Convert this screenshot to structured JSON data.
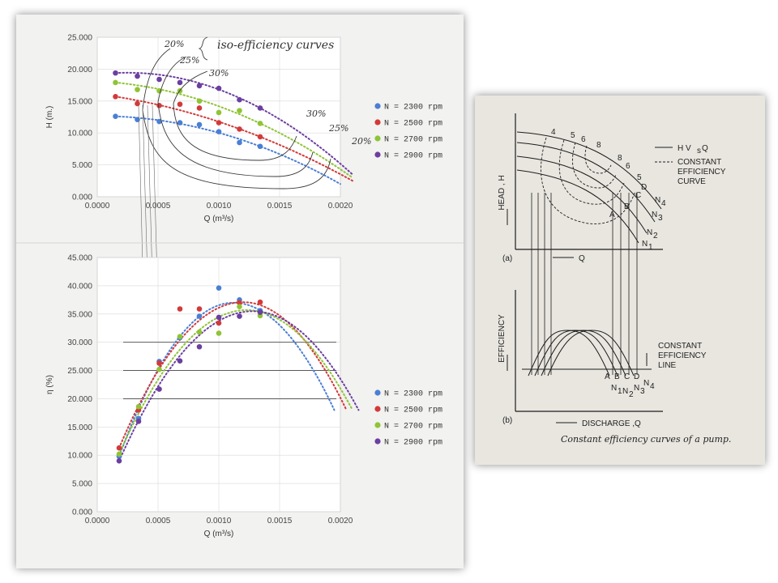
{
  "chart_data": [
    {
      "type": "scatter",
      "title": "",
      "xlabel": "Q (m³/s)",
      "ylabel": "H (m.)",
      "xlim": [
        0,
        0.002
      ],
      "ylim": [
        0,
        25
      ],
      "x_ticks": [
        "0.0000",
        "0.0005",
        "0.0010",
        "0.0015",
        "0.0020"
      ],
      "y_ticks": [
        "0.000",
        "5.000",
        "10.000",
        "15.000",
        "20.000",
        "25.000"
      ],
      "grid": true,
      "legend_position": "right",
      "series": [
        {
          "name": "N = 2300 rpm",
          "color": "#4a7fd4",
          "x": [
            0.00015,
            0.00033,
            0.00051,
            0.00068,
            0.00084,
            0.001,
            0.00117,
            0.00134
          ],
          "y": [
            12.6,
            12.1,
            11.8,
            11.6,
            11.3,
            10.2,
            8.5,
            7.9
          ],
          "fit_x_end": 0.002,
          "fit_y_end": 2.0
        },
        {
          "name": "N = 2500 rpm",
          "color": "#d23a3a",
          "x": [
            0.00015,
            0.00033,
            0.00051,
            0.00068,
            0.00084,
            0.001,
            0.00117,
            0.00134
          ],
          "y": [
            15.7,
            14.6,
            14.3,
            14.5,
            13.9,
            11.6,
            10.6,
            9.4
          ],
          "fit_x_end": 0.0021,
          "fit_y_end": 2.5
        },
        {
          "name": "N = 2700 rpm",
          "color": "#8fc436",
          "x": [
            0.00015,
            0.00033,
            0.00051,
            0.00068,
            0.00084,
            0.001,
            0.00117,
            0.00134
          ],
          "y": [
            17.9,
            16.8,
            16.6,
            16.6,
            15.0,
            13.2,
            13.5,
            11.5
          ],
          "fit_x_end": 0.0021,
          "fit_y_end": 3.0
        },
        {
          "name": "N = 2900 rpm",
          "color": "#6b3fa0",
          "x": [
            0.00015,
            0.00033,
            0.00051,
            0.00068,
            0.00084,
            0.001,
            0.00117,
            0.00134
          ],
          "y": [
            19.4,
            18.9,
            18.4,
            17.9,
            17.4,
            17.0,
            15.2,
            13.9
          ],
          "fit_x_end": 0.0021,
          "fit_y_end": 3.5
        }
      ],
      "annotations": [
        "20%",
        "25%",
        "30%",
        "iso-efficiency curves",
        "30%",
        "25%",
        "20%"
      ]
    },
    {
      "type": "scatter",
      "title": "",
      "xlabel": "Q (m³/s)",
      "ylabel": "η (%)",
      "xlim": [
        0,
        0.002
      ],
      "ylim": [
        0,
        45
      ],
      "x_ticks": [
        "0.0000",
        "0.0005",
        "0.0010",
        "0.0015",
        "0.0020"
      ],
      "y_ticks": [
        "0.000",
        "5.000",
        "10.000",
        "15.000",
        "20.000",
        "25.000",
        "30.000",
        "35.000",
        "40.000",
        "45.000"
      ],
      "grid": true,
      "legend_position": "right",
      "hlines": [
        20,
        25,
        30
      ],
      "series": [
        {
          "name": "N = 2300 rpm",
          "color": "#4a7fd4",
          "x": [
            0.00018,
            0.00034,
            0.00051,
            0.00068,
            0.00084,
            0.001,
            0.00117,
            0.00134
          ],
          "y": [
            9.8,
            16.5,
            26.6,
            30.8,
            34.6,
            39.6,
            37.5,
            35.6
          ],
          "peak_x": 0.00112,
          "peak_y": 37.0,
          "zero_x": 0.00195
        },
        {
          "name": "N = 2500 rpm",
          "color": "#d23a3a",
          "x": [
            0.00018,
            0.00034,
            0.00051,
            0.00068,
            0.00084,
            0.001,
            0.00117,
            0.00134
          ],
          "y": [
            11.3,
            18.0,
            26.3,
            35.9,
            35.9,
            33.4,
            37.0,
            37.1
          ],
          "peak_x": 0.0012,
          "peak_y": 37.1,
          "zero_x": 0.00205
        },
        {
          "name": "N = 2700 rpm",
          "color": "#8fc436",
          "x": [
            0.00018,
            0.00034,
            0.00051,
            0.00068,
            0.00084,
            0.001,
            0.00117,
            0.00134
          ],
          "y": [
            10.2,
            18.6,
            25.2,
            31.0,
            31.8,
            31.6,
            36.3,
            34.7
          ],
          "peak_x": 0.00123,
          "peak_y": 35.7,
          "zero_x": 0.0021
        },
        {
          "name": "N = 2900 rpm",
          "color": "#6b3fa0",
          "x": [
            0.00018,
            0.00034,
            0.00051,
            0.00068,
            0.00084,
            0.001,
            0.00117,
            0.00134
          ],
          "y": [
            9.0,
            16.0,
            21.7,
            26.7,
            29.2,
            34.4,
            34.6,
            35.3
          ],
          "peak_x": 0.00128,
          "peak_y": 35.5,
          "zero_x": 0.00215
        }
      ]
    }
  ],
  "figure": {
    "panel_a_label": "(a)",
    "panel_b_label": "(b)",
    "y_label_a": "HEAD , H",
    "y_label_b": "EFFICIENCY",
    "x_label_a": "Q",
    "x_label_b": "DISCHARGE ,Q",
    "legend_line1": "H V",
    "legend_line1_sub": "s",
    "legend_line1_end": "Q",
    "legend_line2": "CONSTANT",
    "legend_line3": "EFFICIENCY",
    "legend_line4": "CURVE",
    "eff_line_1": "CONSTANT",
    "eff_line_2": "EFFICIENCY",
    "eff_line_3": "LINE",
    "top_numbers": [
      "4",
      "5",
      "6",
      "8",
      "8",
      "6",
      "5"
    ],
    "point_labels": [
      "A",
      "B",
      "C",
      "D"
    ],
    "speed_labels": [
      "N",
      "N",
      "N",
      "N"
    ],
    "speed_subs": [
      "4",
      "3",
      "2",
      "1"
    ],
    "bottom_speed_subs": [
      "1",
      "2",
      "3",
      "4"
    ],
    "caption": "Constant efficiency curves of a pump."
  }
}
